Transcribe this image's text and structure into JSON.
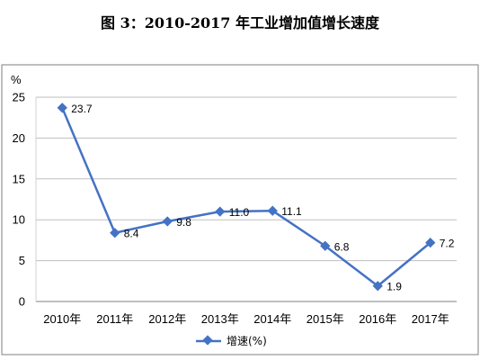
{
  "chart_data": {
    "type": "line",
    "title": "图 3：2010-2017 年工业增加值增长速度",
    "ylabel": "%",
    "categories": [
      "2010年",
      "2011年",
      "2012年",
      "2013年",
      "2014年",
      "2015年",
      "2016年",
      "2017年"
    ],
    "series": [
      {
        "name": "增速(%)",
        "values": [
          23.7,
          8.4,
          9.8,
          11.0,
          11.1,
          6.8,
          1.9,
          7.2
        ]
      }
    ],
    "data_labels": [
      "23.7",
      "8.4",
      "9.8",
      "11.0",
      "11.1",
      "6.8",
      "1.9",
      "7.2"
    ],
    "y_ticks": [
      "0",
      "5",
      "10",
      "15",
      "20",
      "25"
    ],
    "ylim": [
      0,
      25
    ],
    "grid": true,
    "legend": "bottom",
    "colors": {
      "series": "#4472C4",
      "grid": "#bfbfbf",
      "frame": "#7f7f7f"
    }
  }
}
